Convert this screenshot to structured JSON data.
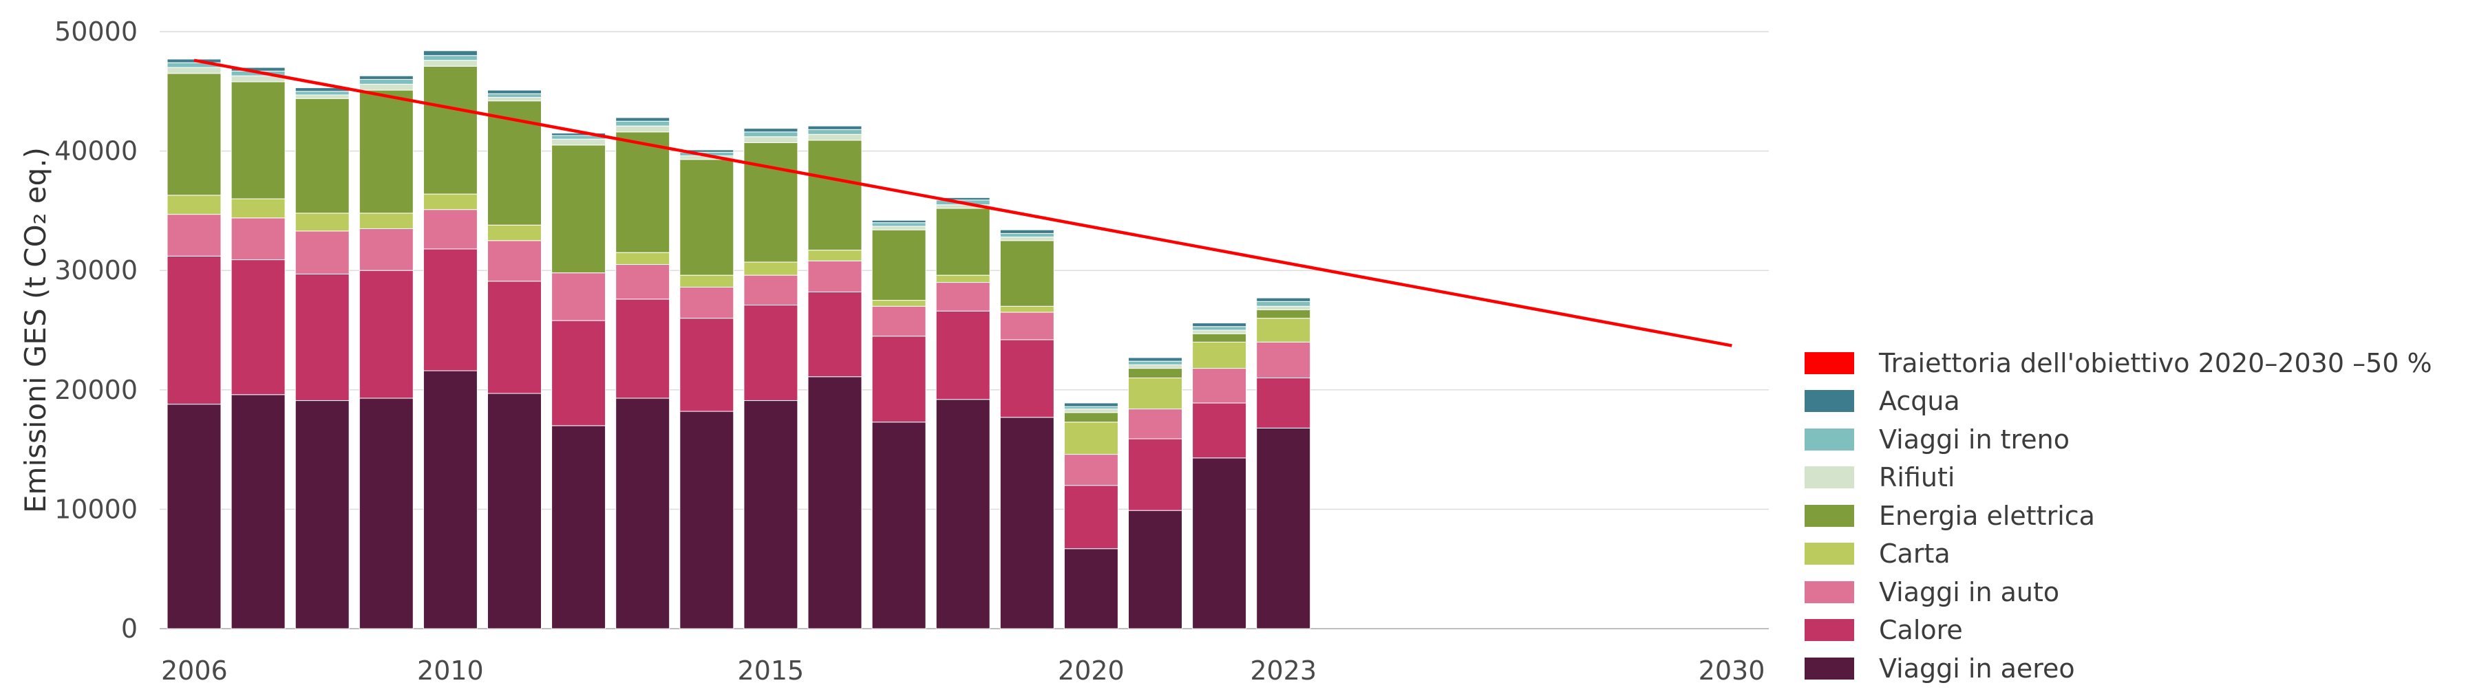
{
  "chart_data": {
    "type": "bar",
    "stacked": true,
    "ylabel": "Emissioni GES (t CO₂ eq.)",
    "xlabel": "",
    "ylim": [
      0,
      50000
    ],
    "yticks": [
      0,
      10000,
      20000,
      30000,
      40000,
      50000
    ],
    "xticks": [
      "2006",
      "2010",
      "2015",
      "2020",
      "2023",
      "2030"
    ],
    "xlim": [
      2006,
      2030
    ],
    "grid": true,
    "legend_position": "right",
    "categories": [
      "2006",
      "2007",
      "2008",
      "2009",
      "2010",
      "2011",
      "2012",
      "2013",
      "2014",
      "2015",
      "2016",
      "2017",
      "2018",
      "2019",
      "2020",
      "2021",
      "2022",
      "2023"
    ],
    "series": [
      {
        "name": "Viaggi in aereo",
        "color": "#561A3E",
        "values": [
          18800,
          19600,
          19100,
          19300,
          21600,
          19700,
          17000,
          19300,
          18200,
          19100,
          21100,
          17300,
          19200,
          17700,
          6700,
          9900,
          14300,
          16800
        ]
      },
      {
        "name": "Calore",
        "color": "#C23464",
        "values": [
          12400,
          11300,
          10600,
          10700,
          10200,
          9400,
          8800,
          8300,
          7800,
          8000,
          7100,
          7200,
          7400,
          6500,
          5300,
          6000,
          4600,
          4200
        ]
      },
      {
        "name": "Viaggi in auto",
        "color": "#DF7396",
        "values": [
          3500,
          3500,
          3600,
          3500,
          3300,
          3400,
          4000,
          2900,
          2600,
          2500,
          2600,
          2500,
          2400,
          2300,
          2600,
          2500,
          2900,
          3000
        ]
      },
      {
        "name": "Carta",
        "color": "#BCCB5E",
        "values": [
          1600,
          1600,
          1500,
          1300,
          1300,
          1300,
          0,
          1000,
          1000,
          1100,
          900,
          500,
          600,
          500,
          2700,
          2600,
          2200,
          2000
        ]
      },
      {
        "name": "Energia elettrica",
        "color": "#7F9E3B",
        "values": [
          10200,
          9800,
          9600,
          10300,
          10700,
          10400,
          10700,
          10100,
          9700,
          10000,
          9200,
          5900,
          5600,
          5500,
          800,
          800,
          700,
          700
        ]
      },
      {
        "name": "Rifiuti",
        "color": "#D4E4CC",
        "values": [
          500,
          500,
          300,
          500,
          500,
          300,
          500,
          500,
          300,
          500,
          500,
          300,
          300,
          300,
          300,
          300,
          300,
          300
        ]
      },
      {
        "name": "Viaggi in treno",
        "color": "#7FBFBE",
        "values": [
          400,
          400,
          300,
          400,
          400,
          300,
          300,
          400,
          300,
          400,
          400,
          300,
          400,
          300,
          200,
          300,
          300,
          400
        ]
      },
      {
        "name": "Acqua",
        "color": "#3D7C8C",
        "values": [
          300,
          300,
          300,
          300,
          400,
          300,
          200,
          300,
          200,
          300,
          300,
          200,
          200,
          300,
          300,
          300,
          300,
          300
        ]
      }
    ],
    "target_line": {
      "name": "Traiettoria dell'obiettivo 2020–2030 –50 %",
      "color": "#FF0000",
      "x": [
        2006,
        2030
      ],
      "y": [
        47600,
        23700
      ]
    }
  },
  "legend": [
    {
      "label": "Traiettoria dell'obiettivo 2020–2030 –50 %",
      "color": "#FF0000"
    },
    {
      "label": "Acqua",
      "color": "#3D7C8C"
    },
    {
      "label": "Viaggi in treno",
      "color": "#7FBFBE"
    },
    {
      "label": "Rifiuti",
      "color": "#D4E4CC"
    },
    {
      "label": "Energia elettrica",
      "color": "#7F9E3B"
    },
    {
      "label": "Carta",
      "color": "#BCCB5E"
    },
    {
      "label": "Viaggi in auto",
      "color": "#DF7396"
    },
    {
      "label": "Calore",
      "color": "#C23464"
    },
    {
      "label": "Viaggi in aereo",
      "color": "#561A3E"
    }
  ]
}
